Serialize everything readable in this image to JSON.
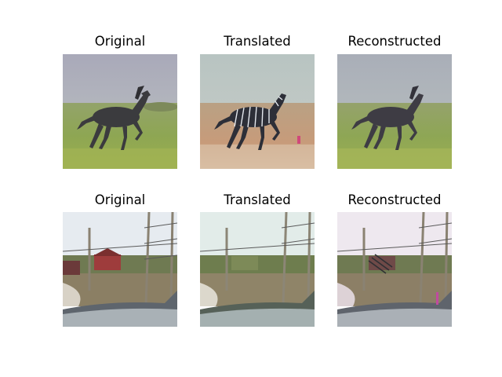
{
  "figure": {
    "rows": [
      {
        "panels": [
          {
            "title": "Original",
            "image": "horse-photo"
          },
          {
            "title": "Translated",
            "image": "zebra-stripes-photo"
          },
          {
            "title": "Reconstructed",
            "image": "horse-reconstructed-photo"
          }
        ]
      },
      {
        "panels": [
          {
            "title": "Original",
            "image": "street-scene-photo"
          },
          {
            "title": "Translated",
            "image": "street-scene-translated-photo"
          },
          {
            "title": "Reconstructed",
            "image": "street-scene-reconstructed-photo"
          }
        ]
      }
    ]
  }
}
